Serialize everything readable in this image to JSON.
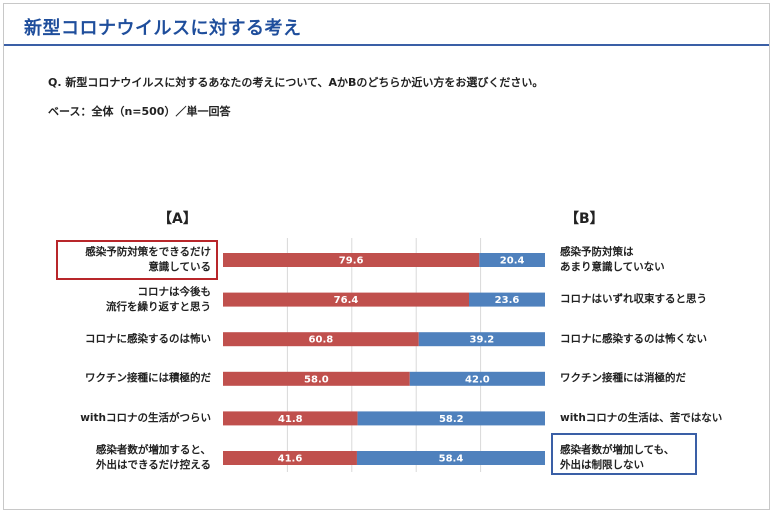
{
  "page": {
    "title": "新型コロナウイルスに対する考え",
    "question": "Q. 新型コロナウイルスに対するあなたの考えについて、AかBのどちらか近い方をお選びください。",
    "base": "ベース：全体（n=500）／単一回答",
    "label_a": "【A】",
    "label_b": "【B】"
  },
  "colors": {
    "a": "#c0504d",
    "b": "#4f81bd",
    "title": "#1f4e9c",
    "grid": "#d9d9d9"
  },
  "chart_data": {
    "type": "bar",
    "orientation": "horizontal",
    "stacked": true,
    "percent_stacked": true,
    "xlim": [
      0,
      100
    ],
    "grid": true,
    "categories": [
      {
        "a": [
          "感染予防対策をできるだけ",
          "意識している"
        ],
        "b": [
          "感染予防対策は",
          "あまり意識していない"
        ]
      },
      {
        "a": [
          "コロナは今後も",
          "流行を繰り返すと思う"
        ],
        "b": [
          "コロナはいずれ収束すると思う"
        ]
      },
      {
        "a": [
          "コロナに感染するのは怖い"
        ],
        "b": [
          "コロナに感染するのは怖くない"
        ]
      },
      {
        "a": [
          "ワクチン接種には積極的だ"
        ],
        "b": [
          "ワクチン接種には消極的だ"
        ]
      },
      {
        "a": [
          "withコロナの生活がつらい"
        ],
        "b": [
          "withコロナの生活は、苦ではない"
        ]
      },
      {
        "a": [
          "感染者数が増加すると、",
          "外出はできるだけ控える"
        ],
        "b": [
          "感染者数が増加しても、",
          "外出は制限しない"
        ]
      }
    ],
    "series": [
      {
        "name": "A",
        "values": [
          79.6,
          76.4,
          60.8,
          58.0,
          41.8,
          41.6
        ]
      },
      {
        "name": "B",
        "values": [
          20.4,
          23.6,
          39.2,
          42.0,
          58.2,
          58.4
        ]
      }
    ]
  }
}
